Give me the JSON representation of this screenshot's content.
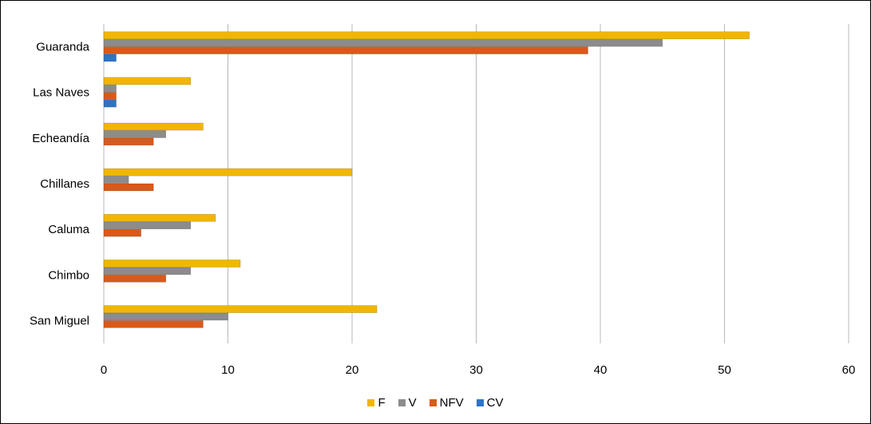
{
  "chart_data": {
    "type": "bar",
    "orientation": "horizontal",
    "title": "",
    "categories": [
      "Guaranda",
      "Las Naves",
      "Echeandía",
      "Chillanes",
      "Caluma",
      "Chimbo",
      "San Miguel"
    ],
    "series": [
      {
        "name": "F",
        "color": "#f2b600",
        "values": [
          52,
          7,
          8,
          20,
          9,
          11,
          22
        ]
      },
      {
        "name": "V",
        "color": "#8c8c8c",
        "values": [
          45,
          1,
          5,
          2,
          7,
          7,
          10
        ]
      },
      {
        "name": "NFV",
        "color": "#d85a1b",
        "values": [
          39,
          1,
          4,
          4,
          3,
          5,
          8
        ]
      },
      {
        "name": "CV",
        "color": "#2e74c4",
        "values": [
          1,
          1,
          0,
          0,
          0,
          0,
          0
        ]
      }
    ],
    "xlim": [
      0,
      60
    ],
    "xticks": [
      0,
      10,
      20,
      30,
      40,
      50,
      60
    ],
    "xlabel": "",
    "ylabel": "",
    "grid": true,
    "legend_position": "bottom"
  }
}
